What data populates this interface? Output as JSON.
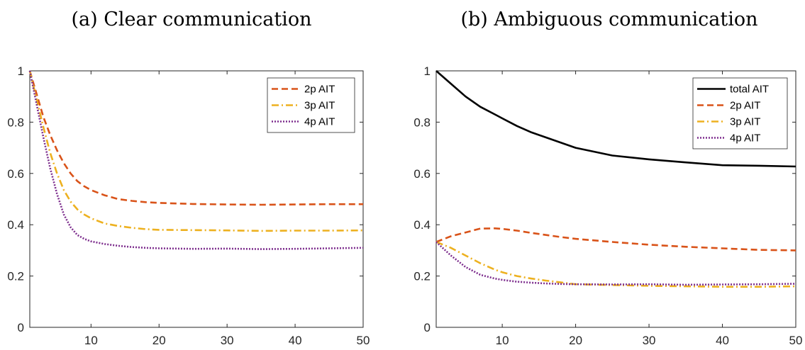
{
  "chart_data": [
    {
      "type": "line",
      "title": "(a) Clear communication",
      "xlabel": "",
      "ylabel": "",
      "xlim": [
        1,
        50
      ],
      "ylim": [
        0,
        1
      ],
      "xticks": [
        10,
        20,
        30,
        40,
        50
      ],
      "yticks": [
        0,
        0.2,
        0.4,
        0.6,
        0.8,
        1
      ],
      "xtick_labels": [
        "10",
        "20",
        "30",
        "40",
        "50"
      ],
      "ytick_labels": [
        "0",
        "0.2",
        "0.4",
        "0.6",
        "0.8",
        "1"
      ],
      "grid": false,
      "legend_position": "top-right",
      "x": [
        1,
        2,
        3,
        4,
        5,
        6,
        7,
        8,
        9,
        10,
        12,
        14,
        16,
        18,
        20,
        25,
        30,
        35,
        40,
        45,
        50
      ],
      "series": [
        {
          "name": "2p AIT",
          "color": "#D95319",
          "dash": "dashed",
          "values": [
            1.0,
            0.91,
            0.82,
            0.75,
            0.69,
            0.64,
            0.6,
            0.57,
            0.55,
            0.535,
            0.515,
            0.5,
            0.493,
            0.488,
            0.485,
            0.481,
            0.479,
            0.478,
            0.479,
            0.48,
            0.48
          ]
        },
        {
          "name": "3p AIT",
          "color": "#EDB120",
          "dash": "dashdot",
          "values": [
            1.0,
            0.89,
            0.78,
            0.68,
            0.6,
            0.535,
            0.49,
            0.46,
            0.44,
            0.425,
            0.405,
            0.395,
            0.388,
            0.383,
            0.38,
            0.379,
            0.378,
            0.376,
            0.377,
            0.377,
            0.378
          ]
        },
        {
          "name": "4p AIT",
          "color": "#7E2F8E",
          "dash": "dotted",
          "values": [
            1.0,
            0.87,
            0.74,
            0.62,
            0.52,
            0.44,
            0.39,
            0.36,
            0.345,
            0.335,
            0.325,
            0.318,
            0.313,
            0.31,
            0.308,
            0.306,
            0.307,
            0.305,
            0.306,
            0.308,
            0.31
          ]
        }
      ]
    },
    {
      "type": "line",
      "title": "(b) Ambiguous communication",
      "xlabel": "",
      "ylabel": "",
      "xlim": [
        1,
        50
      ],
      "ylim": [
        0,
        1
      ],
      "xticks": [
        10,
        20,
        30,
        40,
        50
      ],
      "yticks": [
        0,
        0.2,
        0.4,
        0.6,
        0.8,
        1
      ],
      "xtick_labels": [
        "10",
        "20",
        "30",
        "40",
        "50"
      ],
      "ytick_labels": [
        "0",
        "0.2",
        "0.4",
        "0.6",
        "0.8",
        "1"
      ],
      "grid": false,
      "legend_position": "top-right",
      "x": [
        1,
        3,
        5,
        7,
        9,
        10,
        12,
        14,
        16,
        18,
        20,
        25,
        30,
        35,
        40,
        45,
        50
      ],
      "series": [
        {
          "name": "total AIT",
          "color": "#000000",
          "dash": "solid",
          "values": [
            1.0,
            0.95,
            0.9,
            0.86,
            0.83,
            0.815,
            0.785,
            0.76,
            0.74,
            0.72,
            0.7,
            0.67,
            0.655,
            0.643,
            0.632,
            0.63,
            0.627
          ]
        },
        {
          "name": "2p AIT",
          "color": "#D95319",
          "dash": "dashed",
          "values": [
            0.333,
            0.355,
            0.37,
            0.385,
            0.386,
            0.384,
            0.377,
            0.368,
            0.36,
            0.352,
            0.345,
            0.333,
            0.322,
            0.314,
            0.308,
            0.302,
            0.3
          ]
        },
        {
          "name": "3p AIT",
          "color": "#EDB120",
          "dash": "dashdot",
          "values": [
            0.333,
            0.31,
            0.28,
            0.25,
            0.225,
            0.215,
            0.2,
            0.19,
            0.182,
            0.175,
            0.168,
            0.165,
            0.162,
            0.16,
            0.158,
            0.158,
            0.16
          ]
        },
        {
          "name": "4p AIT",
          "color": "#7E2F8E",
          "dash": "dotted",
          "values": [
            0.333,
            0.28,
            0.235,
            0.205,
            0.19,
            0.185,
            0.178,
            0.174,
            0.171,
            0.169,
            0.168,
            0.167,
            0.168,
            0.166,
            0.167,
            0.168,
            0.17
          ]
        }
      ]
    }
  ]
}
